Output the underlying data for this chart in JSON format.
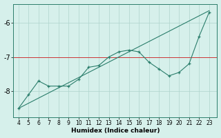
{
  "x": [
    4,
    5,
    6,
    7,
    8,
    9,
    10,
    11,
    12,
    13,
    14,
    15,
    16,
    17,
    18,
    19,
    20,
    21,
    22,
    23
  ],
  "y": [
    -8.5,
    -8.1,
    -7.7,
    -7.85,
    -7.85,
    -7.85,
    -7.65,
    -7.3,
    -7.25,
    -7.0,
    -6.85,
    -6.8,
    -6.85,
    -7.15,
    -7.35,
    -7.55,
    -7.45,
    -7.2,
    -6.4,
    -5.7
  ],
  "trend_x": [
    4,
    23
  ],
  "trend_y": [
    -8.5,
    -5.65
  ],
  "xlim": [
    3.5,
    23.8
  ],
  "ylim": [
    -8.75,
    -5.45
  ],
  "yticks": [
    -8,
    -7,
    -6
  ],
  "xticks": [
    4,
    5,
    6,
    7,
    8,
    9,
    10,
    11,
    12,
    13,
    14,
    15,
    16,
    17,
    18,
    19,
    20,
    21,
    22,
    23
  ],
  "xlabel": "Humidex (Indice chaleur)",
  "line_color": "#2a7d6b",
  "bg_color": "#d6f0eb",
  "grid_color": "#aed4cc",
  "red_line_y": -7.0,
  "red_line_color": "#cc3333",
  "tick_fontsize": 5.5,
  "xlabel_fontsize": 6.5,
  "ylabel_fontsize": 7
}
